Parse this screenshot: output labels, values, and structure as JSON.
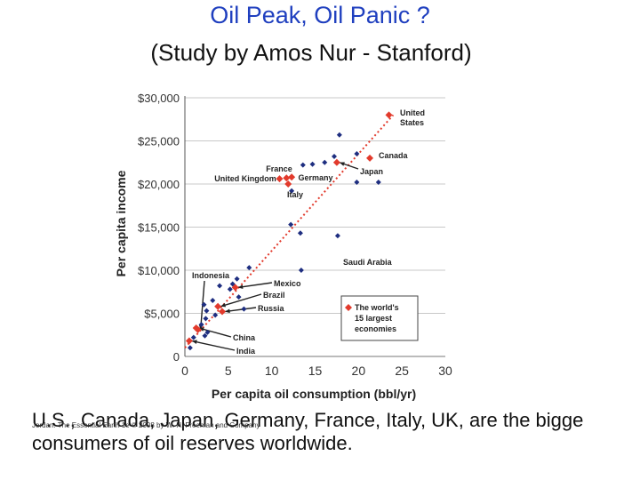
{
  "title": "Oil Peak, Oil Panic ?",
  "subtitle": "(Study by Amos Nur - Stanford)",
  "caption_line1": "U.S., Canada, Japan, Germany, France, Italy, UK, are the bigge",
  "caption_line2": "consumers of oil reserves worldwide.",
  "footer": "Jordan: The Essential Earth 1e © 2008 by W. H. Freeman and Company",
  "colors": {
    "title": "#1f3fbf",
    "red_point": "#e23a2c",
    "blue_point": "#1e2e80",
    "trend": "#e23a2c"
  },
  "chart_data": {
    "type": "scatter",
    "xlabel": "Per capita oil consumption (bbl/yr)",
    "ylabel": "Per capita income",
    "xlim": [
      0,
      30
    ],
    "ylim": [
      0,
      30000
    ],
    "x_ticks": [
      "0",
      "5",
      "10",
      "15",
      "20",
      "25",
      "30"
    ],
    "y_ticks": [
      "0",
      "$5,000",
      "$10,000",
      "$15,000",
      "$20,000",
      "$25,000",
      "$30,000"
    ],
    "trendline": {
      "from": [
        0,
        1000
      ],
      "to": [
        24,
        28000
      ],
      "style": "dotted"
    },
    "largest_economies": [
      {
        "name": "United States",
        "label": "United\nStates",
        "x": 23.5,
        "y": 28000
      },
      {
        "name": "Canada",
        "label": "Canada",
        "x": 21.3,
        "y": 23000
      },
      {
        "name": "Japan",
        "label": "Japan",
        "x": 17.5,
        "y": 22500
      },
      {
        "name": "Germany",
        "label": "Germany",
        "x": 12.3,
        "y": 20800
      },
      {
        "name": "France",
        "label": "France",
        "x": 11.7,
        "y": 20700
      },
      {
        "name": "Italy",
        "label": "Italy",
        "x": 11.9,
        "y": 20000
      },
      {
        "name": "United Kingdom",
        "label": "United Kingdom",
        "x": 10.9,
        "y": 20600
      },
      {
        "name": "Mexico",
        "label": "Mexico",
        "x": 5.8,
        "y": 8000
      },
      {
        "name": "Brazil",
        "label": "Brazil",
        "x": 3.8,
        "y": 5800
      },
      {
        "name": "Russia",
        "label": "Russia",
        "x": 4.3,
        "y": 5200
      },
      {
        "name": "Indonesia",
        "label": "Indonesia",
        "x": 1.5,
        "y": 3100
      },
      {
        "name": "China",
        "label": "China",
        "x": 1.3,
        "y": 3300
      },
      {
        "name": "India",
        "label": "India",
        "x": 0.5,
        "y": 1800
      }
    ],
    "other_countries": [
      {
        "x": 17.8,
        "y": 25700
      },
      {
        "x": 14.7,
        "y": 22300
      },
      {
        "x": 16.1,
        "y": 22500
      },
      {
        "x": 13.6,
        "y": 22200
      },
      {
        "x": 17.2,
        "y": 23200
      },
      {
        "x": 12.3,
        "y": 19200
      },
      {
        "x": 19.8,
        "y": 23500
      },
      {
        "x": 19.8,
        "y": 20200
      },
      {
        "x": 22.3,
        "y": 20200
      },
      {
        "x": 12.2,
        "y": 15300
      },
      {
        "x": 13.3,
        "y": 14300
      },
      {
        "x": 17.6,
        "y": 14000
      },
      {
        "x": 13.4,
        "y": 10000
      },
      {
        "x": 7.4,
        "y": 10300
      },
      {
        "x": 4.0,
        "y": 8200
      },
      {
        "x": 5.5,
        "y": 8400
      },
      {
        "x": 6.0,
        "y": 9000
      },
      {
        "x": 5.2,
        "y": 7800
      },
      {
        "x": 3.2,
        "y": 6500
      },
      {
        "x": 2.2,
        "y": 6000
      },
      {
        "x": 6.2,
        "y": 6900
      },
      {
        "x": 2.5,
        "y": 5300
      },
      {
        "x": 3.5,
        "y": 4800
      },
      {
        "x": 2.4,
        "y": 4400
      },
      {
        "x": 6.8,
        "y": 5500
      },
      {
        "x": 1.9,
        "y": 3700
      },
      {
        "x": 2.6,
        "y": 2800
      },
      {
        "x": 1.0,
        "y": 2200
      },
      {
        "x": 0.6,
        "y": 1000
      },
      {
        "x": 2.3,
        "y": 2400
      }
    ],
    "outlier_annotation": {
      "name": "Saudi Arabia",
      "label": "Saudi Arabia",
      "x": 22.0,
      "y": 10500
    },
    "legend_text": [
      "The world's",
      "15 largest",
      "economies"
    ],
    "legend_position": "bottom-right"
  }
}
